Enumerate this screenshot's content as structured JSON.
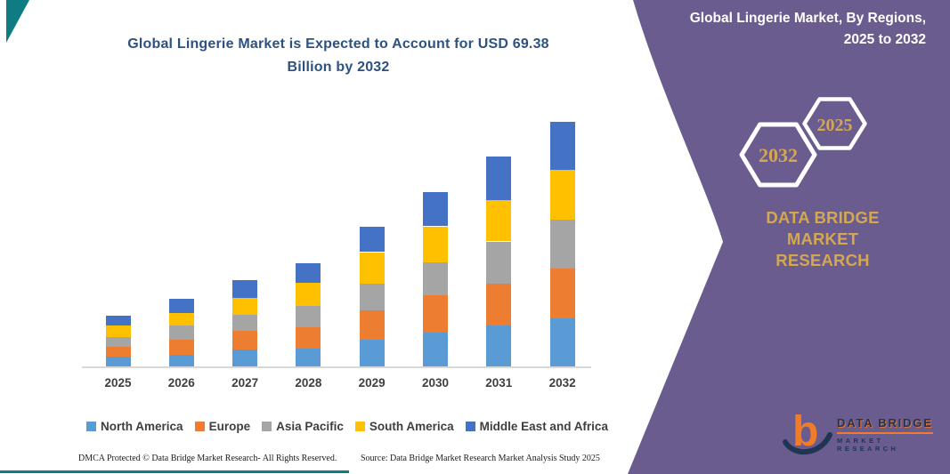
{
  "page": {
    "chart_title_line1": "Global Lingerie Market is Expected to Account for USD 69.38",
    "chart_title_line2": "Billion by 2032"
  },
  "panel": {
    "bg_color": "#6A5C8E",
    "title_line1": "Global Lingerie Market, By Regions,",
    "title_line2": "2025 to 2032",
    "hexagon_back_label": "2032",
    "hexagon_front_label": "2025",
    "hexagon_label_color": "#D3A753",
    "company_line1": "DATA BRIDGE MARKET",
    "company_line2": "RESEARCH",
    "company_color": "#D3A753"
  },
  "logo": {
    "mark_letter": "b",
    "name": "DATA BRIDGE",
    "tagline": "MARKET RESEARCH",
    "mark_orange": "#F07B28",
    "mark_navy": "#1F3553"
  },
  "footer": {
    "left": "DMCA Protected © Data Bridge Market Research- All Rights Reserved.",
    "source": "Source: Data Bridge Market Research Market Analysis Study 2025"
  },
  "decorations": {
    "accent_teal": "#0E7C82"
  },
  "chart_data": {
    "type": "bar",
    "stacked": true,
    "unit": "USD Billion",
    "title": "Global Lingerie Market is Expected to Account for USD 69.38 Billion by 2032",
    "xlabel": "",
    "ylabel": "",
    "grid": false,
    "legend_position": "bottom",
    "categories": [
      "2025",
      "2026",
      "2027",
      "2028",
      "2029",
      "2030",
      "2031",
      "2032"
    ],
    "series": [
      {
        "name": "North America",
        "color": "#5B9BD5",
        "values": [
          2.8,
          3.5,
          5.0,
          5.2,
          7.8,
          9.8,
          11.6,
          13.7
        ]
      },
      {
        "name": "Europe",
        "color": "#ED7D31",
        "values": [
          2.8,
          4.3,
          5.2,
          6.0,
          8.2,
          10.5,
          12.0,
          14.1
        ]
      },
      {
        "name": "Asia Pacific",
        "color": "#A5A5A5",
        "values": [
          2.9,
          4.0,
          4.6,
          6.1,
          7.6,
          9.4,
          11.9,
          13.9
        ]
      },
      {
        "name": "South America",
        "color": "#FFC000",
        "values": [
          3.2,
          3.5,
          4.8,
          6.4,
          8.9,
          10.1,
          11.8,
          14.2
        ]
      },
      {
        "name": "Middle East and Africa",
        "color": "#4472C4",
        "values": [
          2.9,
          4.0,
          5.0,
          5.7,
          7.1,
          9.8,
          12.2,
          13.5
        ]
      }
    ],
    "totals": [
      14.6,
      19.3,
      24.6,
      29.4,
      39.6,
      49.6,
      59.5,
      69.38
    ],
    "projected_2032_total": 69.38
  }
}
